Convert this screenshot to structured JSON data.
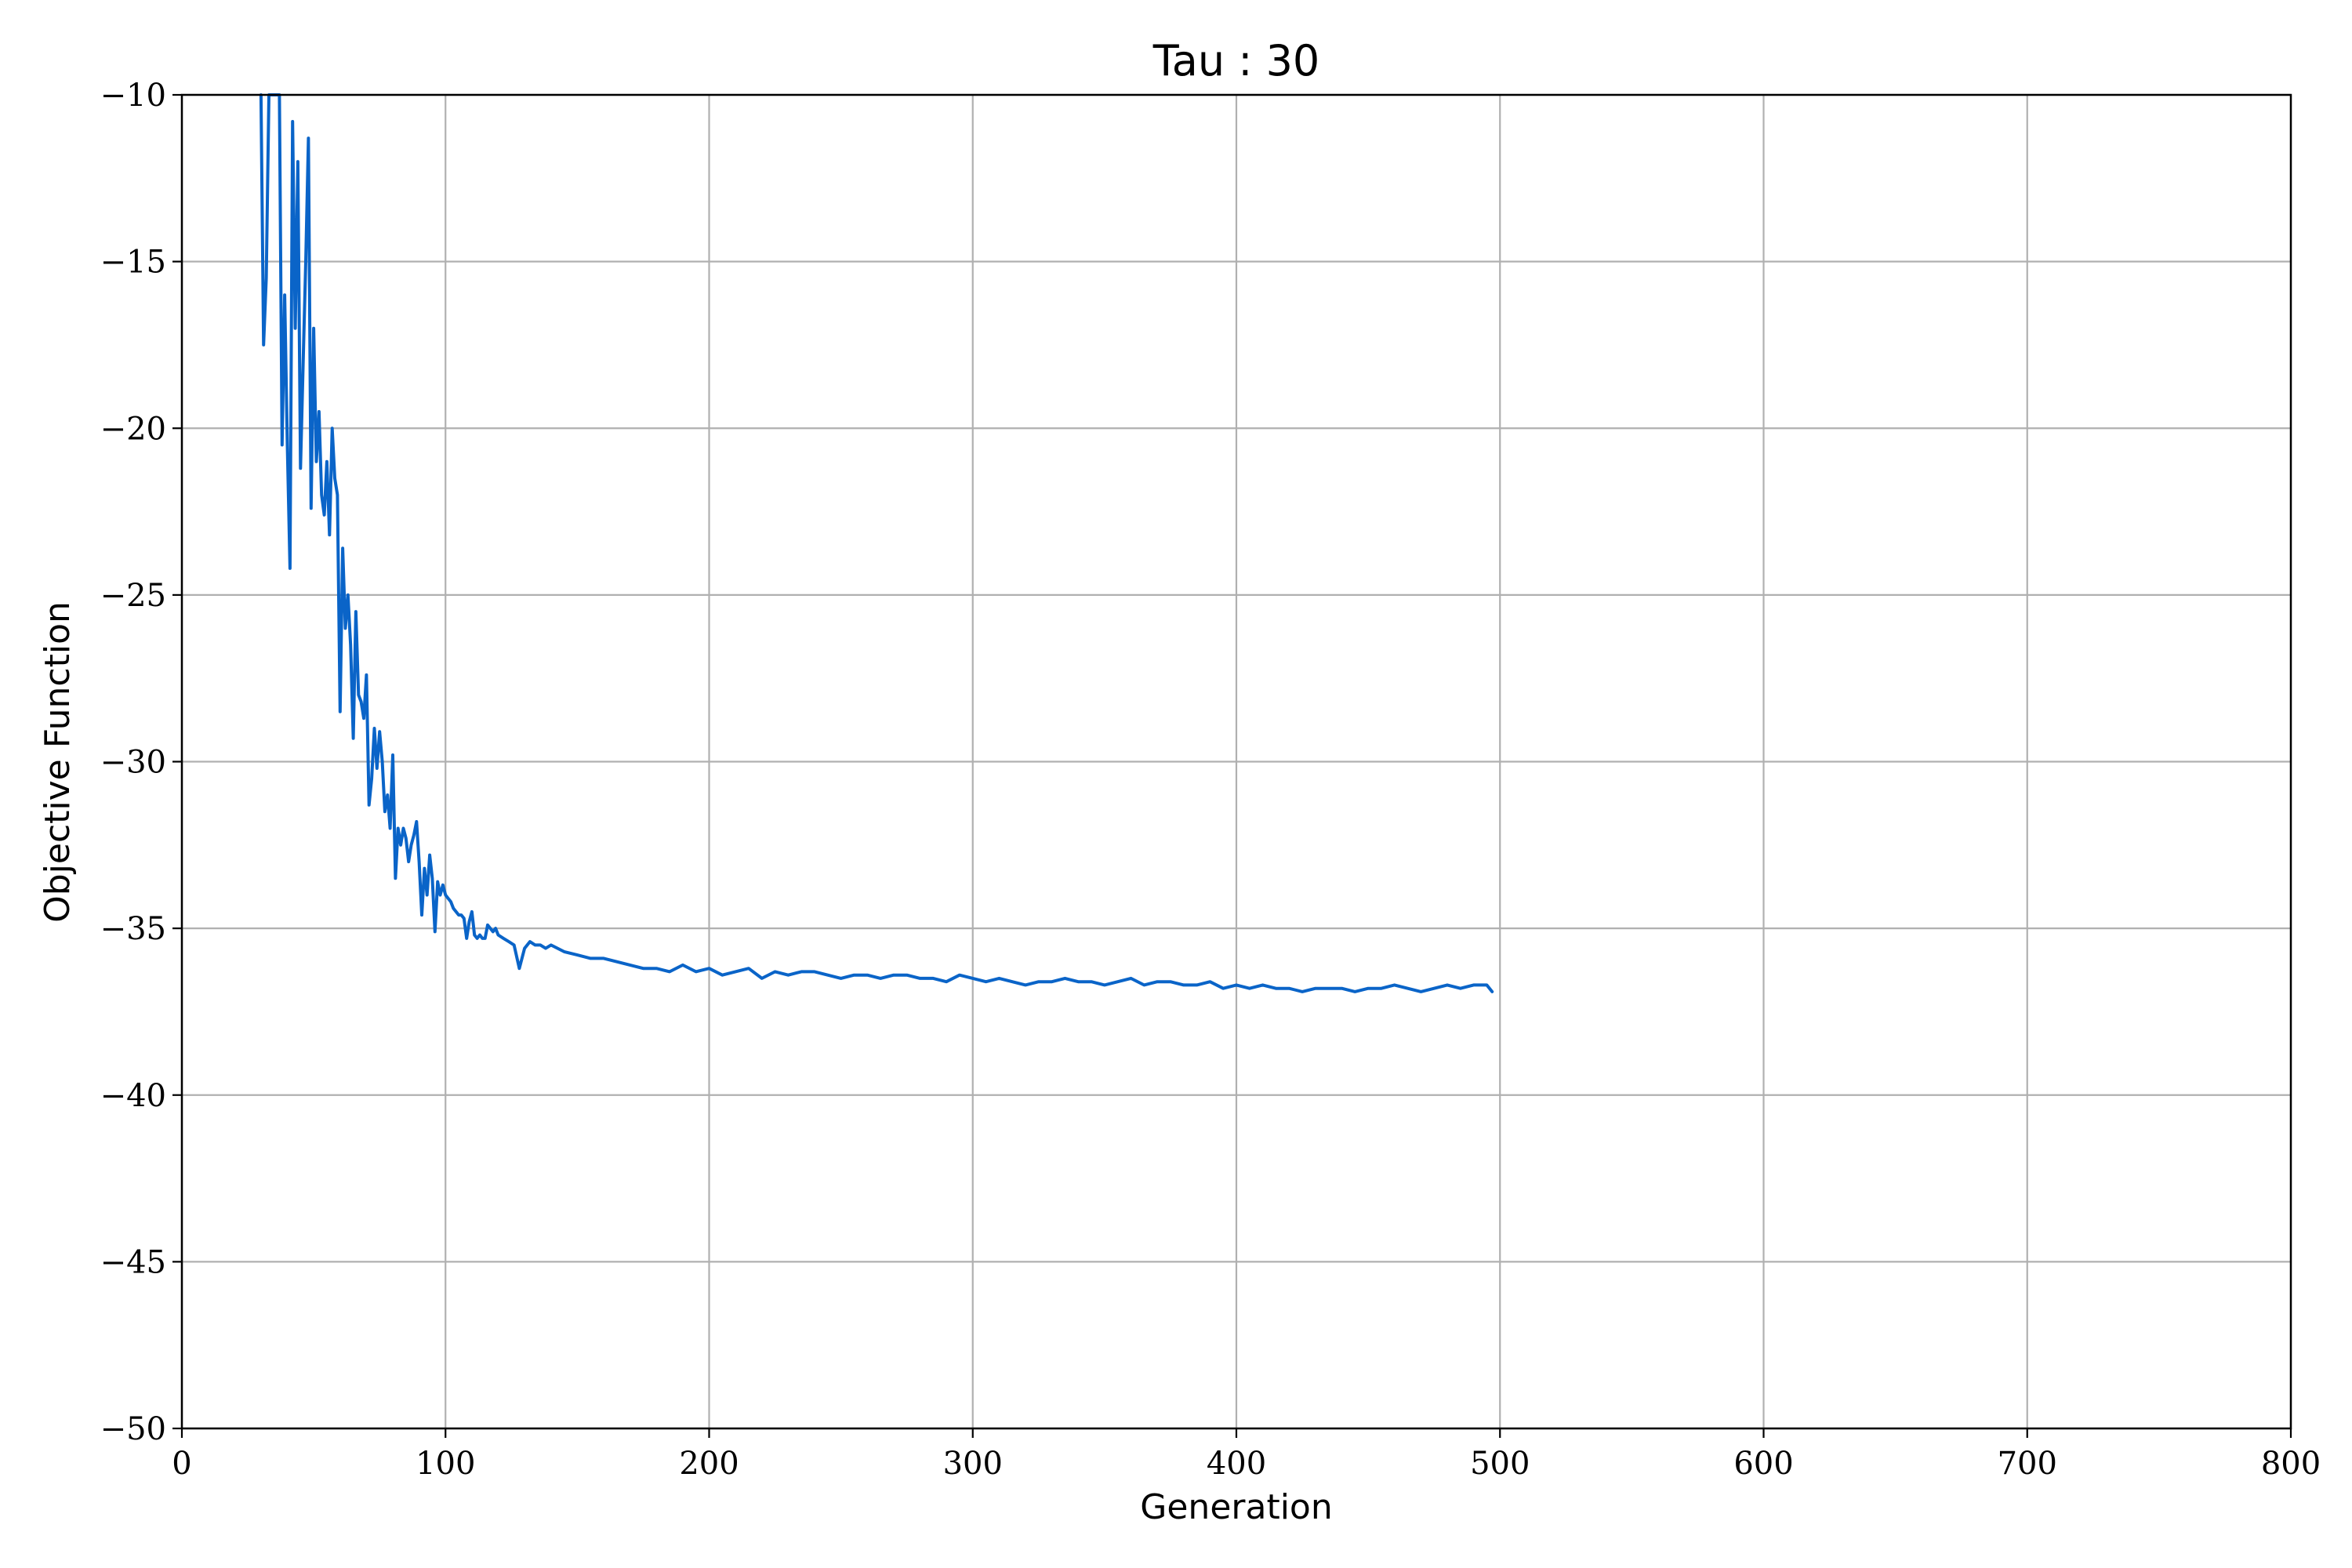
{
  "chart_data": {
    "type": "line",
    "title": "Tau : 30",
    "xlabel": "Generation",
    "ylabel": "Objective Function",
    "xlim": [
      0,
      800
    ],
    "ylim": [
      -50,
      -10
    ],
    "x_ticks": [
      0,
      100,
      200,
      300,
      400,
      500,
      600,
      700,
      800
    ],
    "x_tick_labels": [
      "0",
      "100",
      "200",
      "300",
      "400",
      "500",
      "600",
      "700",
      "800"
    ],
    "y_ticks": [
      -50,
      -45,
      -40,
      -35,
      -30,
      -25,
      -20,
      -15,
      -10
    ],
    "y_tick_labels": [
      "−50",
      "−45",
      "−40",
      "−35",
      "−30",
      "−25",
      "−20",
      "−15",
      "−10"
    ],
    "grid": true,
    "line_color": "#0a64c8",
    "series": [
      {
        "x": [
          30,
          31,
          32,
          33,
          34,
          35,
          36,
          37,
          38,
          39,
          40,
          41,
          42,
          43,
          44,
          45,
          46,
          47,
          48,
          49,
          50,
          51,
          52,
          53,
          54,
          55,
          56,
          57,
          58,
          59,
          60,
          61,
          62,
          63,
          64,
          65,
          66,
          67,
          68,
          69,
          70,
          71,
          72,
          73,
          74,
          75,
          76,
          77,
          78,
          79,
          80,
          81,
          82,
          83,
          84,
          85,
          86,
          87,
          88,
          89,
          90,
          91,
          92,
          93,
          94,
          95,
          96,
          97,
          98,
          99,
          100,
          101,
          102,
          103,
          104,
          105,
          106,
          107,
          108,
          109,
          110,
          111,
          112,
          113,
          114,
          115,
          116,
          117,
          118,
          119,
          120,
          122,
          124,
          126,
          128,
          130,
          132,
          134,
          136,
          138,
          140,
          145,
          150,
          155,
          160,
          165,
          170,
          175,
          180,
          185,
          190,
          195,
          200,
          205,
          210,
          215,
          220,
          225,
          230,
          235,
          240,
          245,
          250,
          255,
          260,
          265,
          270,
          275,
          280,
          285,
          290,
          295,
          300,
          305,
          310,
          315,
          320,
          325,
          330,
          335,
          340,
          345,
          350,
          355,
          360,
          365,
          370,
          375,
          380,
          385,
          390,
          395,
          400,
          405,
          410,
          415,
          420,
          425,
          430,
          435,
          440,
          445,
          450,
          455,
          460,
          465,
          470,
          475,
          480,
          485,
          490,
          495,
          497
        ],
        "y": [
          -10,
          -17.5,
          -15.5,
          -10,
          -10,
          -10,
          -10,
          -10,
          -20.5,
          -16,
          -20.5,
          -24.2,
          -10.8,
          -17,
          -12,
          -21.2,
          -18,
          -15,
          -11.3,
          -22.4,
          -17,
          -21,
          -19.5,
          -22,
          -22.6,
          -21,
          -23.2,
          -20,
          -21.5,
          -22,
          -28.5,
          -23.6,
          -26,
          -25,
          -26.5,
          -29.3,
          -25.5,
          -28,
          -28.2,
          -28.7,
          -27.4,
          -31.3,
          -30.5,
          -29,
          -30.2,
          -29.1,
          -30,
          -31.5,
          -31,
          -32,
          -29.8,
          -33.5,
          -32,
          -32.5,
          -32,
          -32.3,
          -33,
          -32.5,
          -32.2,
          -31.8,
          -33,
          -34.6,
          -33.2,
          -34,
          -32.8,
          -33.5,
          -35.1,
          -33.6,
          -34,
          -33.7,
          -34,
          -34.1,
          -34.2,
          -34.4,
          -34.5,
          -34.6,
          -34.6,
          -34.7,
          -35.3,
          -34.8,
          -34.5,
          -35.2,
          -35.3,
          -35.2,
          -35.3,
          -35.3,
          -34.9,
          -35,
          -35.1,
          -35.0,
          -35.2,
          -35.3,
          -35.4,
          -35.5,
          -36.2,
          -35.6,
          -35.4,
          -35.5,
          -35.5,
          -35.6,
          -35.5,
          -35.7,
          -35.8,
          -35.9,
          -35.9,
          -36.0,
          -36.1,
          -36.2,
          -36.2,
          -36.3,
          -36.1,
          -36.3,
          -36.2,
          -36.4,
          -36.3,
          -36.2,
          -36.5,
          -36.3,
          -36.4,
          -36.3,
          -36.3,
          -36.4,
          -36.5,
          -36.4,
          -36.4,
          -36.5,
          -36.4,
          -36.4,
          -36.5,
          -36.5,
          -36.6,
          -36.4,
          -36.5,
          -36.6,
          -36.5,
          -36.6,
          -36.7,
          -36.6,
          -36.6,
          -36.5,
          -36.6,
          -36.6,
          -36.7,
          -36.6,
          -36.5,
          -36.7,
          -36.6,
          -36.6,
          -36.7,
          -36.7,
          -36.6,
          -36.8,
          -36.7,
          -36.8,
          -36.7,
          -36.8,
          -36.8,
          -36.9,
          -36.8,
          -36.8,
          -36.8,
          -36.9,
          -36.8,
          -36.8,
          -36.7,
          -36.8,
          -36.9,
          -36.8,
          -36.7,
          -36.8,
          -36.7,
          -36.7,
          -36.9
        ]
      }
    ]
  }
}
